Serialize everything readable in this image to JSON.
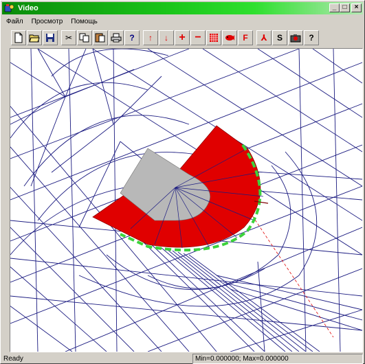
{
  "window": {
    "title": "Video",
    "minimize_glyph": "_",
    "maximize_glyph": "□",
    "close_glyph": "×"
  },
  "menu": {
    "items": [
      "Файл",
      "Просмотр",
      "Помощь"
    ]
  },
  "toolbar": {
    "buttons": [
      {
        "name": "new-file-icon",
        "glyph": ""
      },
      {
        "name": "open-folder-icon",
        "glyph": ""
      },
      {
        "name": "save-icon",
        "glyph": ""
      },
      {
        "name": "cut-icon",
        "glyph": "✂"
      },
      {
        "name": "copy-icon",
        "glyph": ""
      },
      {
        "name": "paste-icon",
        "glyph": ""
      },
      {
        "name": "print-icon",
        "glyph": ""
      },
      {
        "name": "help-context-icon",
        "glyph": "?"
      },
      {
        "name": "arrow-up-icon",
        "glyph": "↑"
      },
      {
        "name": "arrow-down-icon",
        "glyph": "↓"
      },
      {
        "name": "zoom-in-plus-icon",
        "glyph": "+"
      },
      {
        "name": "zoom-out-minus-icon",
        "glyph": "−"
      },
      {
        "name": "grid-icon",
        "glyph": ""
      },
      {
        "name": "fish-icon",
        "glyph": ""
      },
      {
        "name": "f-icon",
        "glyph": "F"
      },
      {
        "name": "marker-icon",
        "glyph": "⅄"
      },
      {
        "name": "s-icon",
        "glyph": "S"
      },
      {
        "name": "camera-icon",
        "glyph": ""
      },
      {
        "name": "about-icon",
        "glyph": "?"
      }
    ]
  },
  "status": {
    "ready": "Ready",
    "minmax": "Min=0.000000; Max=0.000000"
  },
  "colors": {
    "mesh": "#1a1a80",
    "red_region": "#e00000",
    "gray_region": "#b8b8b8",
    "green_boundary": "#3cd23c"
  }
}
